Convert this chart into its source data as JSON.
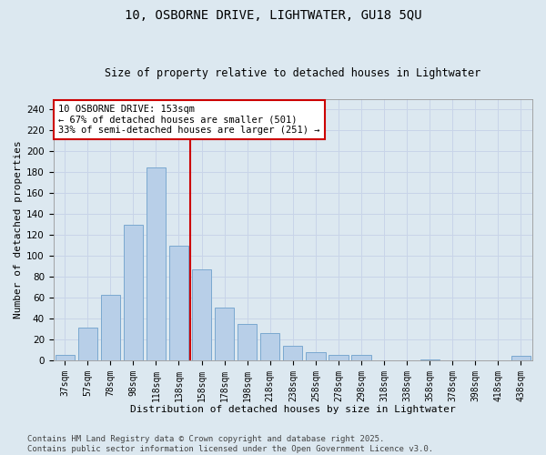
{
  "title": "10, OSBORNE DRIVE, LIGHTWATER, GU18 5QU",
  "subtitle": "Size of property relative to detached houses in Lightwater",
  "xlabel": "Distribution of detached houses by size in Lightwater",
  "ylabel": "Number of detached properties",
  "bar_labels": [
    "37sqm",
    "57sqm",
    "78sqm",
    "98sqm",
    "118sqm",
    "138sqm",
    "158sqm",
    "178sqm",
    "198sqm",
    "218sqm",
    "238sqm",
    "258sqm",
    "278sqm",
    "298sqm",
    "318sqm",
    "338sqm",
    "358sqm",
    "378sqm",
    "398sqm",
    "418sqm",
    "438sqm"
  ],
  "bar_values": [
    5,
    31,
    63,
    130,
    185,
    110,
    87,
    50,
    35,
    26,
    14,
    8,
    5,
    5,
    0,
    0,
    1,
    0,
    0,
    0,
    4
  ],
  "bar_color": "#b8cfe8",
  "bar_edge_color": "#7aa8d0",
  "vline_x": 5.5,
  "vline_color": "#cc0000",
  "annotation_text": "10 OSBORNE DRIVE: 153sqm\n← 67% of detached houses are smaller (501)\n33% of semi-detached houses are larger (251) →",
  "annotation_box_color": "#ffffff",
  "annotation_box_edge_color": "#cc0000",
  "annotation_fontsize": 7.5,
  "ylim": [
    0,
    250
  ],
  "yticks": [
    0,
    20,
    40,
    60,
    80,
    100,
    120,
    140,
    160,
    180,
    200,
    220,
    240
  ],
  "grid_color": "#c8d4e8",
  "background_color": "#dce8f0",
  "plot_bg_color": "#dce8f0",
  "footer_text": "Contains HM Land Registry data © Crown copyright and database right 2025.\nContains public sector information licensed under the Open Government Licence v3.0.",
  "footer_fontsize": 6.5,
  "title_fontsize": 10,
  "subtitle_fontsize": 8.5,
  "xlabel_fontsize": 8,
  "ylabel_fontsize": 8
}
